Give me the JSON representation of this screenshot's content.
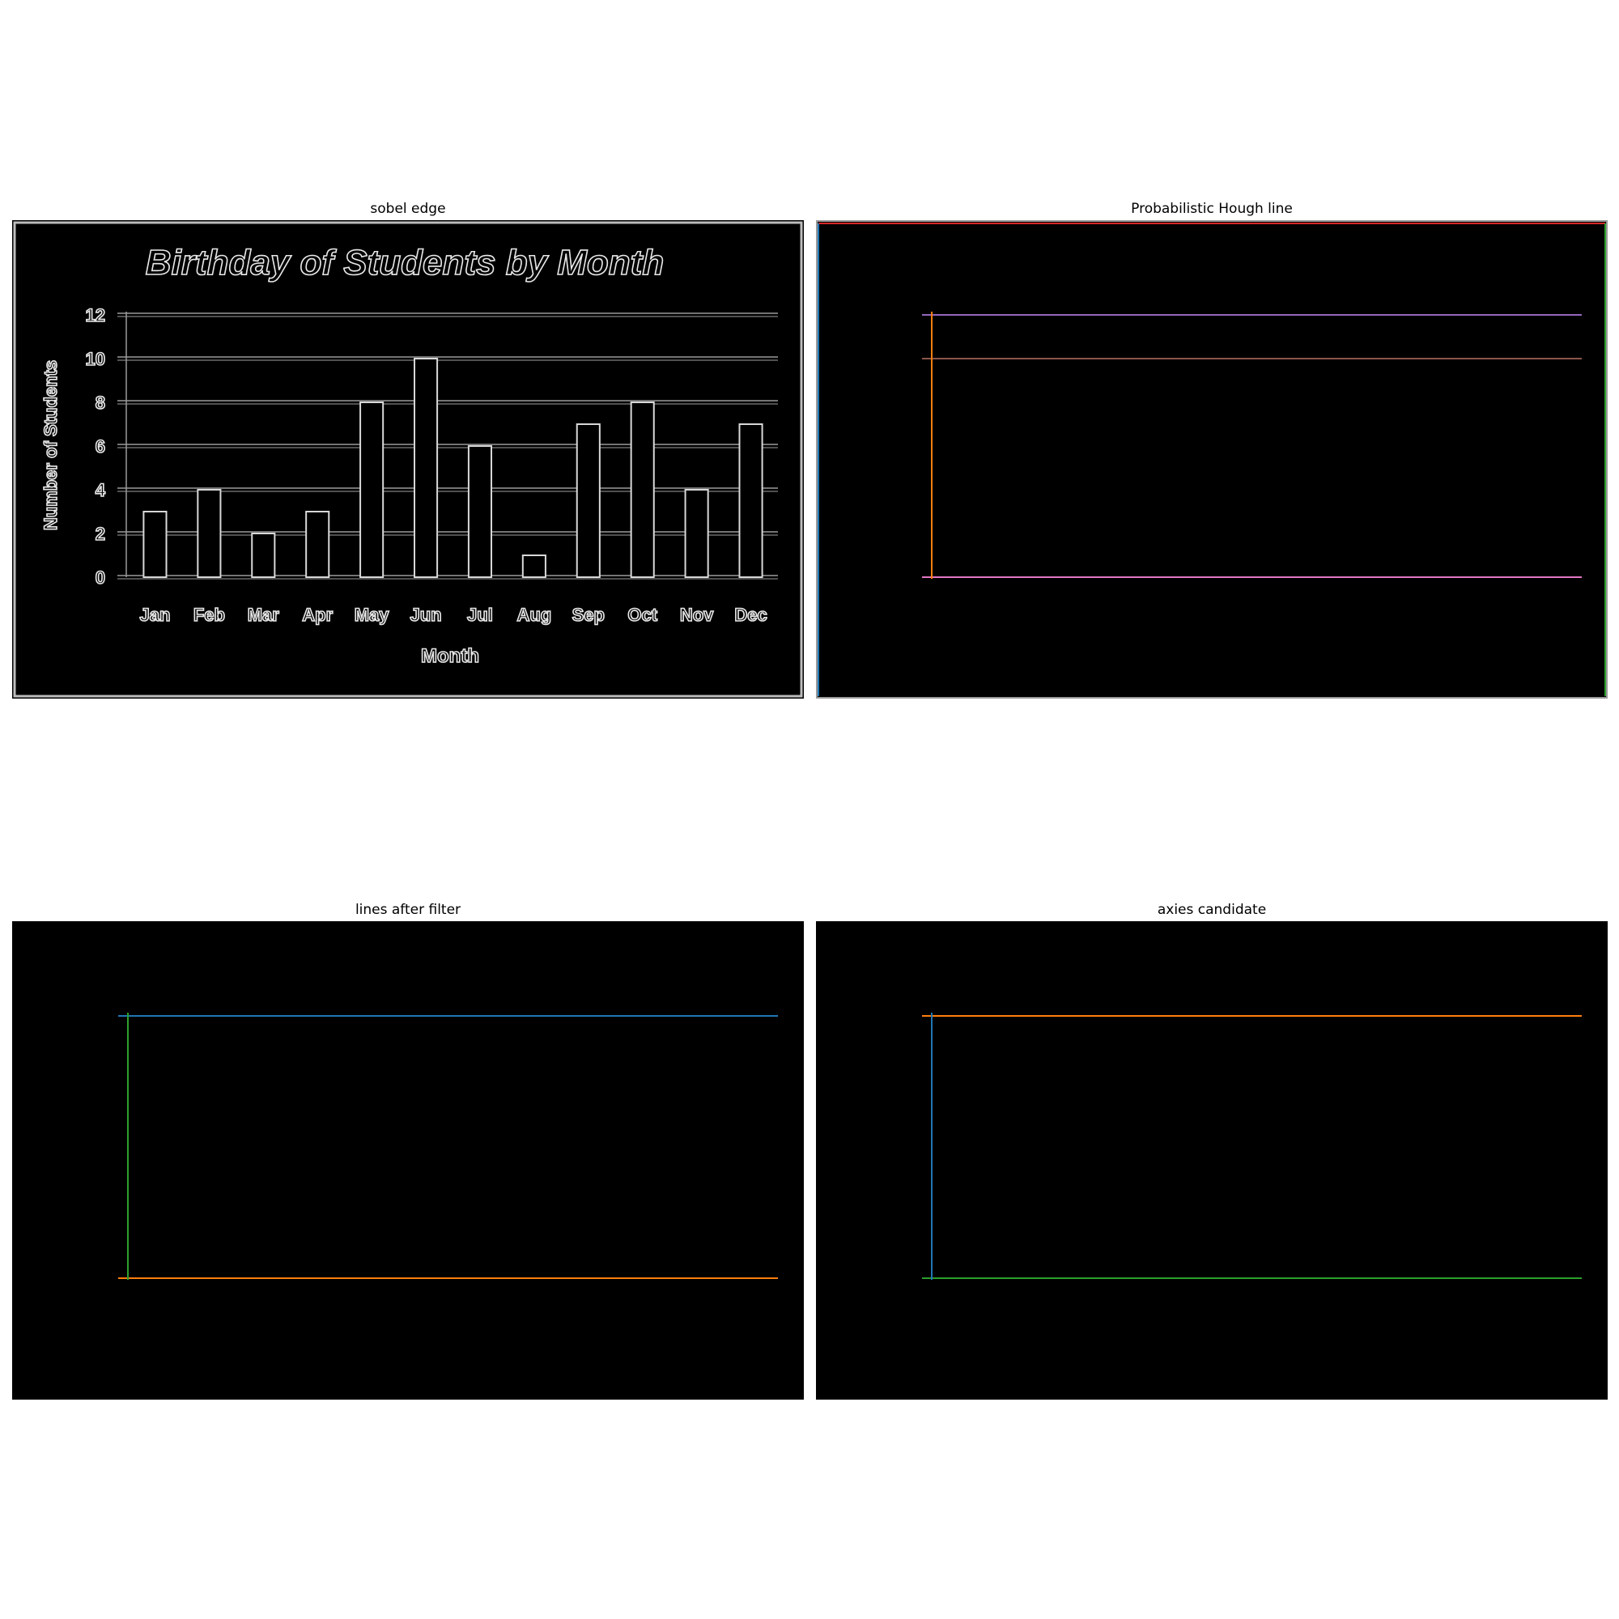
{
  "panels": {
    "sobel": {
      "title": "sobel edge"
    },
    "hough": {
      "title": "Probabilistic Hough line"
    },
    "filter": {
      "title": "lines after filter"
    },
    "axes": {
      "title": "axies candidate"
    }
  },
  "chart_data": {
    "type": "bar",
    "title": "Birthday of Students by Month",
    "xlabel": "Month",
    "ylabel": "Number of Students",
    "categories": [
      "Jan",
      "Feb",
      "Mar",
      "Apr",
      "May",
      "Jun",
      "Jul",
      "Aug",
      "Sep",
      "Oct",
      "Nov",
      "Dec"
    ],
    "values": [
      3,
      4,
      2,
      3,
      8,
      10,
      6,
      1,
      7,
      8,
      4,
      7
    ],
    "ylim": [
      0,
      12
    ],
    "yticks": [
      "0",
      "2",
      "4",
      "6",
      "8",
      "10",
      "12"
    ],
    "grid": true
  },
  "colors": {
    "blue": "#1f77b4",
    "orange": "#ff7f0e",
    "green": "#2ca02c",
    "red": "#d62728",
    "purple": "#9467bd",
    "brown": "#8c564b",
    "pink": "#e377c2"
  }
}
